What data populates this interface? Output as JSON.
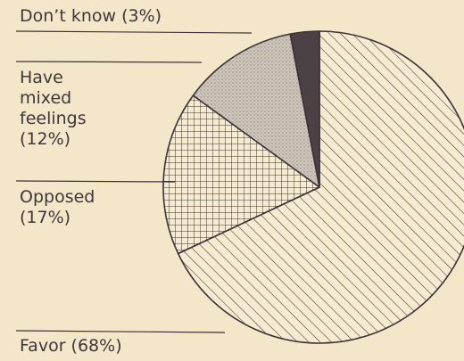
{
  "chart_data": {
    "type": "pie",
    "title": "",
    "slices": [
      {
        "label": "Favor (68%)",
        "value": 68,
        "pattern": "diagonal-hatch"
      },
      {
        "label": "Opposed\n(17%)",
        "value": 17,
        "pattern": "crosshatch"
      },
      {
        "label": "Have\nmixed\nfeelings\n(12%)",
        "value": 12,
        "pattern": "stipple"
      },
      {
        "label": "Don’t know (3%)",
        "value": 3,
        "pattern": "solid-dark"
      }
    ],
    "legend": "none",
    "colors": {
      "background": "#f4e6c9",
      "ink": "#3a3436",
      "stipple": "#c9c1b6",
      "solid": "#4a4244"
    }
  }
}
